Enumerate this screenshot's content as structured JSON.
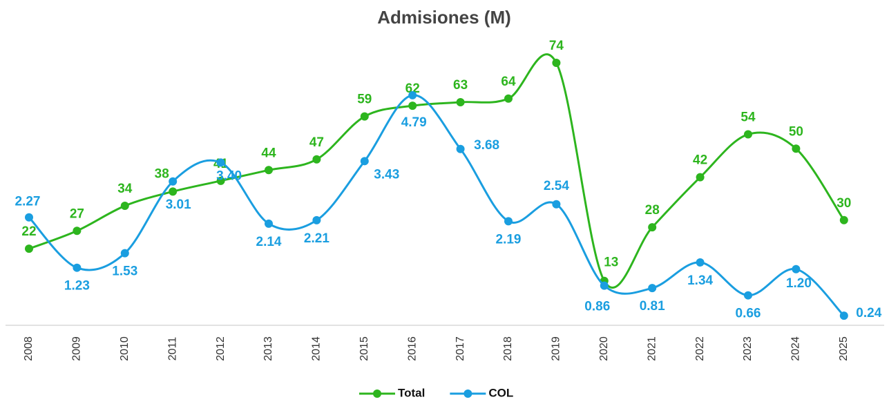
{
  "chart_data": {
    "type": "line",
    "title": "Admisiones (M)",
    "categories": [
      "2008",
      "2009",
      "2010",
      "2011",
      "2012",
      "2013",
      "2014",
      "2015",
      "2016",
      "2017",
      "2018",
      "2019",
      "2020",
      "2021",
      "2022",
      "2023",
      "2024",
      "2025"
    ],
    "ylim": [
      0,
      80
    ],
    "y2lim": [
      0,
      5.9
    ],
    "series": [
      {
        "name": "Total",
        "color": "#2db51e",
        "values": [
          22,
          27,
          34,
          38,
          41,
          44,
          47,
          59,
          62,
          63,
          64,
          74,
          13,
          28,
          42,
          54,
          50,
          30
        ]
      },
      {
        "name": "COL",
        "color": "#1a9ee0",
        "axis": "y2",
        "values": [
          2.27,
          1.23,
          1.53,
          3.01,
          3.4,
          2.14,
          2.21,
          3.43,
          4.79,
          3.68,
          2.19,
          2.54,
          0.86,
          0.81,
          1.34,
          0.66,
          1.2,
          0.24
        ],
        "value_labels": [
          "2.27",
          "1.23",
          "1.53",
          "3.01",
          "3.40",
          "2.14",
          "2.21",
          "3.43",
          "4.79",
          "3.68",
          "2.19",
          "2.54",
          "0.86",
          "0.81",
          "1.34",
          "0.66",
          "1.20",
          "0.24"
        ]
      }
    ],
    "legend": "bottom"
  }
}
